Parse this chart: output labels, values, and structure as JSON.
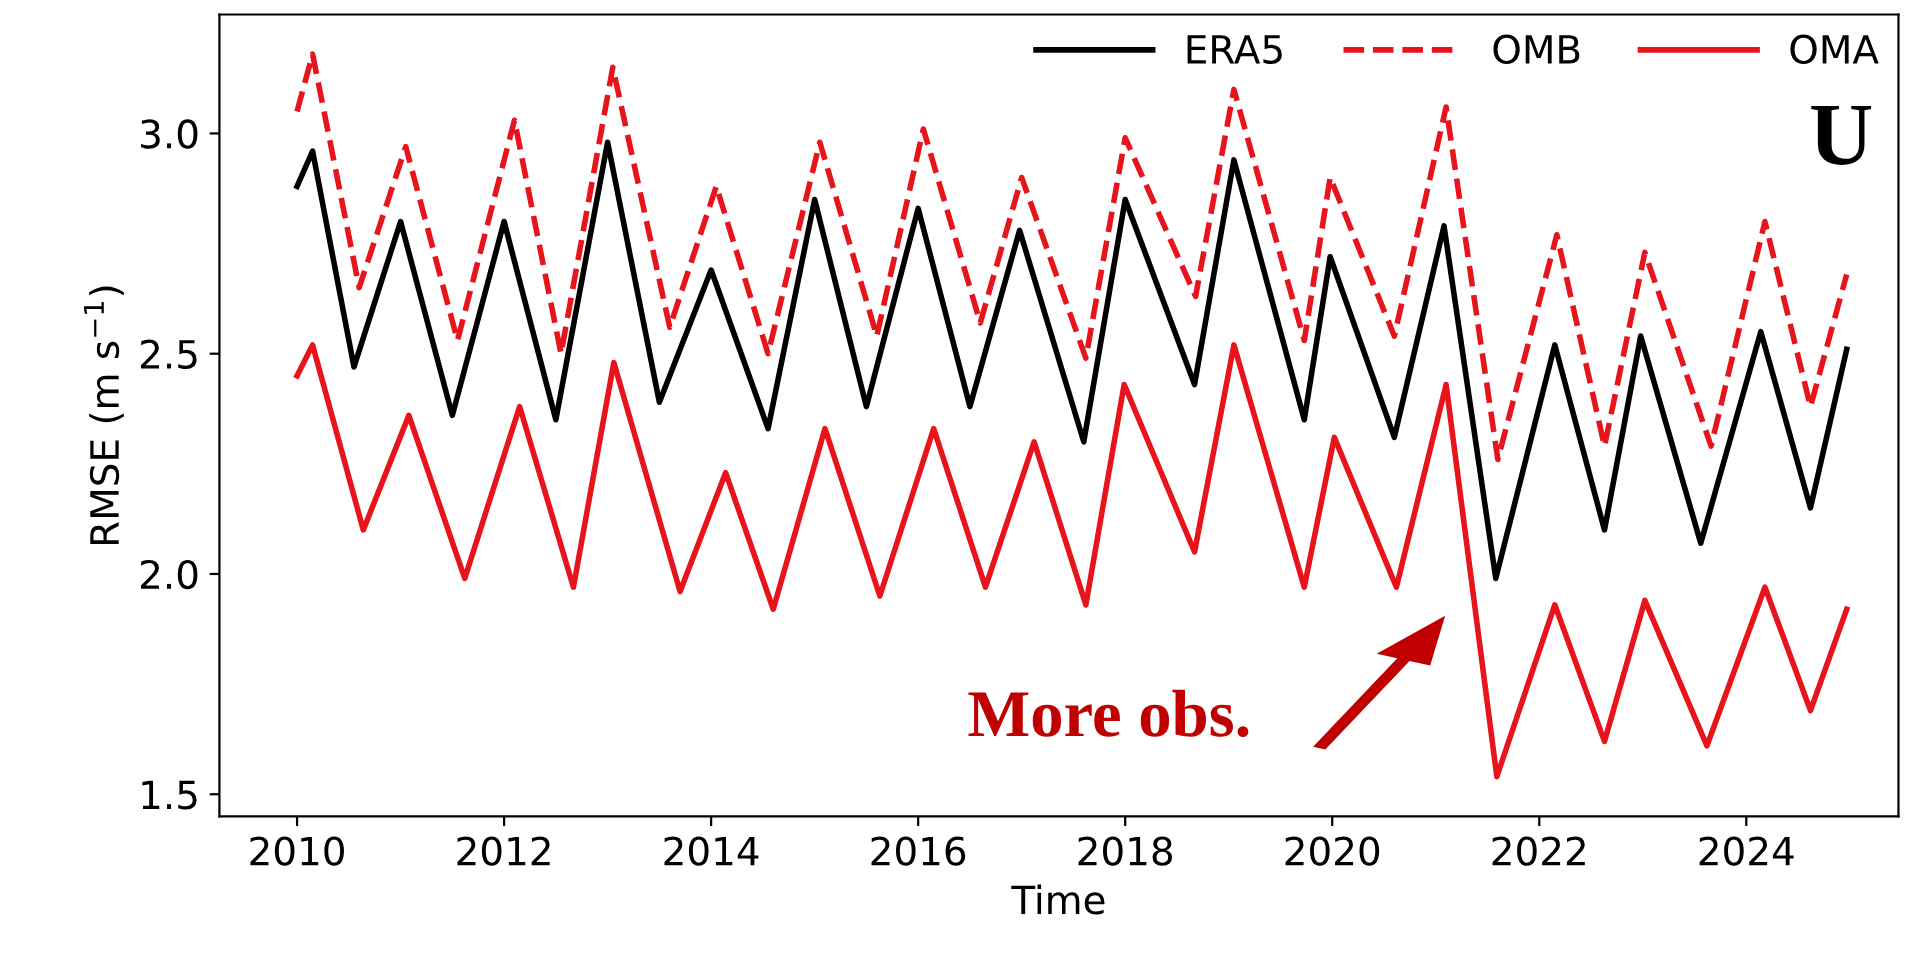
{
  "chart_data": {
    "type": "line",
    "xlabel": "Time",
    "ylabel": "RMSE (m s$^{−1}$)",
    "xlim": [
      2009.25,
      2025.47
    ],
    "ylim": [
      1.45,
      3.27
    ],
    "xticks": [
      2010,
      2012,
      2014,
      2016,
      2018,
      2020,
      2022,
      2024
    ],
    "yticks": [
      1.5,
      {
        "value": 2,
        "label": "2.0"
      },
      2.5,
      {
        "value": 3,
        "label": "3.0"
      }
    ],
    "grid": false,
    "legend": "top right",
    "marker": "none",
    "series": [
      {
        "name": "ERA5",
        "color": "#000000",
        "line_style": "solid",
        "x": [
          2010.0,
          2010.15,
          2010.55,
          2011.0,
          2011.5,
          2012.0,
          2012.5,
          2013.0,
          2013.5,
          2014.0,
          2014.55,
          2015.0,
          2015.5,
          2016.0,
          2016.5,
          2016.98,
          2017.6,
          2018.0,
          2018.67,
          2019.05,
          2019.73,
          2019.98,
          2020.6,
          2021.08,
          2021.58,
          2022.15,
          2022.63,
          2022.98,
          2023.56,
          2024.14,
          2024.62,
          2024.97
        ],
        "values": [
          2.88,
          2.96,
          2.47,
          2.8,
          2.36,
          2.8,
          2.35,
          2.98,
          2.39,
          2.69,
          2.33,
          2.85,
          2.38,
          2.83,
          2.38,
          2.78,
          2.3,
          2.85,
          2.43,
          2.94,
          2.35,
          2.72,
          2.31,
          2.79,
          1.99,
          2.52,
          2.1,
          2.54,
          2.07,
          2.55,
          2.15,
          2.51
        ]
      },
      {
        "name": "OMB",
        "color": "#e8141c",
        "line_style": "dashed",
        "x": [
          2010.0,
          2010.15,
          2010.6,
          2011.05,
          2011.55,
          2012.1,
          2012.55,
          2013.05,
          2013.6,
          2014.05,
          2014.55,
          2015.05,
          2015.6,
          2016.05,
          2016.6,
          2017.0,
          2017.62,
          2018.0,
          2018.68,
          2019.05,
          2019.73,
          2019.98,
          2020.6,
          2021.1,
          2021.6,
          2022.17,
          2022.63,
          2023.02,
          2023.66,
          2024.18,
          2024.62,
          2024.97
        ],
        "values": [
          3.05,
          3.18,
          2.65,
          2.97,
          2.53,
          3.03,
          2.5,
          3.15,
          2.56,
          2.88,
          2.5,
          2.98,
          2.54,
          3.01,
          2.57,
          2.9,
          2.49,
          2.99,
          2.63,
          3.1,
          2.53,
          2.9,
          2.54,
          3.06,
          2.26,
          2.77,
          2.29,
          2.73,
          2.29,
          2.8,
          2.38,
          2.68
        ]
      },
      {
        "name": "OMA",
        "color": "#e8141c",
        "line_style": "solid",
        "x": [
          2010.0,
          2010.15,
          2010.64,
          2011.08,
          2011.62,
          2012.15,
          2012.67,
          2013.06,
          2013.7,
          2014.14,
          2014.6,
          2015.1,
          2015.63,
          2016.15,
          2016.65,
          2017.12,
          2017.62,
          2017.99,
          2018.67,
          2019.05,
          2019.73,
          2020.02,
          2020.62,
          2021.1,
          2021.37,
          2021.59,
          2022.15,
          2022.63,
          2023.02,
          2023.62,
          2024.18,
          2024.62,
          2024.97
        ],
        "values": [
          2.45,
          2.52,
          2.1,
          2.36,
          1.99,
          2.38,
          1.97,
          2.48,
          1.96,
          2.23,
          1.92,
          2.33,
          1.95,
          2.33,
          1.97,
          2.3,
          1.93,
          2.43,
          2.05,
          2.52,
          1.97,
          2.31,
          1.97,
          2.43,
          1.94,
          1.54,
          1.93,
          1.62,
          1.94,
          1.61,
          1.97,
          1.69,
          1.92
        ]
      }
    ],
    "annotations": [
      "More obs.",
      "U"
    ]
  }
}
